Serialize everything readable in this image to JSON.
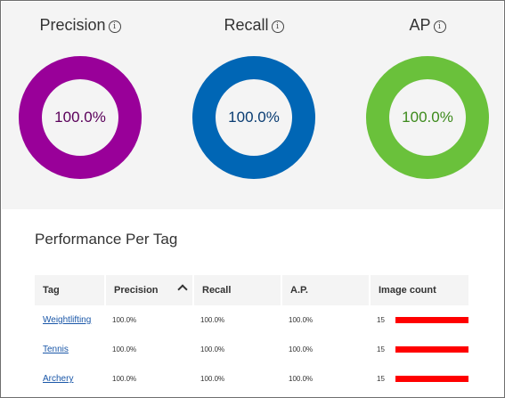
{
  "metrics": [
    {
      "key": "precision",
      "title": "Precision",
      "value": "100.0%",
      "fraction": 1.0,
      "color": "#990099",
      "text_color": "#5a005a"
    },
    {
      "key": "recall",
      "title": "Recall",
      "value": "100.0%",
      "fraction": 1.0,
      "color": "#0066b5",
      "text_color": "#0a3d73"
    },
    {
      "key": "ap",
      "title": "AP",
      "value": "100.0%",
      "fraction": 1.0,
      "color": "#6ac13b",
      "text_color": "#3d8a1c"
    }
  ],
  "info_icon": {
    "glyph": "i"
  },
  "performance": {
    "title": "Performance Per Tag",
    "columns": {
      "tag": "Tag",
      "precision": "Precision",
      "recall": "Recall",
      "ap": "A.P.",
      "image_count": "Image count"
    },
    "sorted_by": "precision",
    "sort_direction": "ascending",
    "bar_color": "#ff0000",
    "rows": [
      {
        "tag": "Weightlifting",
        "precision": "100.0%",
        "recall": "100.0%",
        "ap": "100.0%",
        "image_count": "15",
        "count_fraction": 1.0
      },
      {
        "tag": "Tennis",
        "precision": "100.0%",
        "recall": "100.0%",
        "ap": "100.0%",
        "image_count": "15",
        "count_fraction": 1.0
      },
      {
        "tag": "Archery",
        "precision": "100.0%",
        "recall": "100.0%",
        "ap": "100.0%",
        "image_count": "15",
        "count_fraction": 1.0
      }
    ]
  }
}
